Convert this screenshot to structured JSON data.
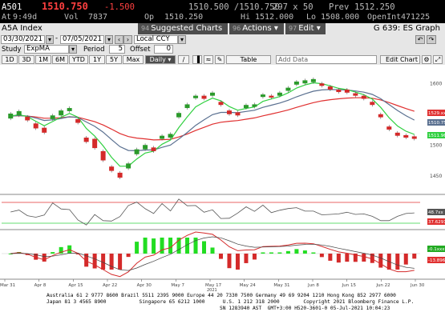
{
  "quote": {
    "symbol": "A501",
    "last": "1510.750",
    "change": "-1.500",
    "bid_ask": "1510.500 /1510.750",
    "size": "297 x 50",
    "prev_label": "Prev",
    "prev": "1512.250",
    "time_label": "At",
    "time": "9:49d",
    "vol_label": "Vol",
    "vol": "7837",
    "open_label": "Op",
    "open": "1510.250",
    "high_label": "Hi",
    "high": "1512.000",
    "low_label": "Lo",
    "low": "1508.000",
    "oi_label": "OpenInt",
    "oi": "471225"
  },
  "titlebar": {
    "title": "A5A Index",
    "suggested_num": "94",
    "suggested": "Suggested Charts",
    "actions_num": "96",
    "actions": "Actions ▾",
    "edit_num": "97",
    "edit": "Edit ▾",
    "right": "G 639: ES Graph"
  },
  "daterow": {
    "start": "03/30/2021",
    "end": "07/05/2021",
    "currency": "Local CCY"
  },
  "studyrow": {
    "study_label": "Study",
    "study": "ExpMA",
    "period_label": "Period",
    "period": "5",
    "offset_label": "Offset",
    "offset": "0"
  },
  "rangerow": {
    "buttons": [
      "1D",
      "3D",
      "1M",
      "6M",
      "YTD",
      "1Y",
      "5Y",
      "Max"
    ],
    "freq": "Daily ▾",
    "table": "Table",
    "add_data": "Add Data",
    "edit_chart": "Edit Chart"
  },
  "chart_data": {
    "type": "candlestick",
    "xlabels": [
      "Mar 31",
      "Apr 8",
      "Apr 15",
      "Apr 22",
      "Apr 30",
      "May 7",
      "May 17",
      "May 24",
      "May 31",
      "Jun 8",
      "Jun 15",
      "Jun 22",
      "Jun 30"
    ],
    "x_year": "2021",
    "yticks": [
      "1600",
      "1550",
      "1500",
      "1450"
    ],
    "ylim": [
      1425,
      1625
    ],
    "candles": [
      [
        1543,
        1551
      ],
      [
        1548,
        1555
      ],
      [
        1540,
        1546
      ],
      [
        1527,
        1535
      ],
      [
        1520,
        1528
      ],
      [
        1542,
        1548
      ],
      [
        1548,
        1556
      ],
      [
        1555,
        1560
      ],
      [
        1536,
        1542
      ],
      [
        1505,
        1512
      ],
      [
        1495,
        1510
      ],
      [
        1475,
        1490
      ],
      [
        1458,
        1465
      ],
      [
        1447,
        1455
      ],
      [
        1462,
        1470
      ],
      [
        1485,
        1493
      ],
      [
        1493,
        1500
      ],
      [
        1490,
        1496
      ],
      [
        1510,
        1515
      ],
      [
        1512,
        1518
      ],
      [
        1545,
        1552
      ],
      [
        1560,
        1566
      ],
      [
        1576,
        1580
      ],
      [
        1575,
        1580
      ],
      [
        1580,
        1585
      ],
      [
        1565,
        1570
      ],
      [
        1550,
        1556
      ],
      [
        1548,
        1553
      ],
      [
        1560,
        1565
      ],
      [
        1562,
        1566
      ],
      [
        1578,
        1582
      ],
      [
        1577,
        1580
      ],
      [
        1580,
        1585
      ],
      [
        1588,
        1593
      ],
      [
        1598,
        1603
      ],
      [
        1600,
        1605
      ],
      [
        1602,
        1607
      ],
      [
        1596,
        1600
      ],
      [
        1590,
        1595
      ],
      [
        1586,
        1590
      ],
      [
        1585,
        1590
      ],
      [
        1580,
        1584
      ],
      [
        1575,
        1580
      ],
      [
        1565,
        1570
      ],
      [
        1545,
        1550
      ],
      [
        1525,
        1530
      ],
      [
        1515,
        1520
      ],
      [
        1512,
        1516
      ],
      [
        1510,
        1514
      ]
    ],
    "price_labels": [
      "1529.xx",
      "1510.75",
      "1511.96"
    ],
    "rsi_labels": [
      "48.7xx",
      "37.6291"
    ],
    "macd_labels": [
      "-0.1xxx",
      "-13.896x"
    ]
  },
  "footer": {
    "line1": "Australia 61 2 9777 8600 Brazil 5511 2395 9000 Europe 44 20 7330 7500 Germany 49 69 9204 1210 Hong Kong 852 2977 6000",
    "line2": "Japan 81 3 4565 8900           Singapore 65 6212 1000      U.S. 1 212 318 2000        Copyright 2021 Bloomberg Finance L.P.",
    "line3": "                                                          SN 1283940 AST  GMT+3:00 H520-3601-0 05-Jul-2021 10:04:23"
  }
}
